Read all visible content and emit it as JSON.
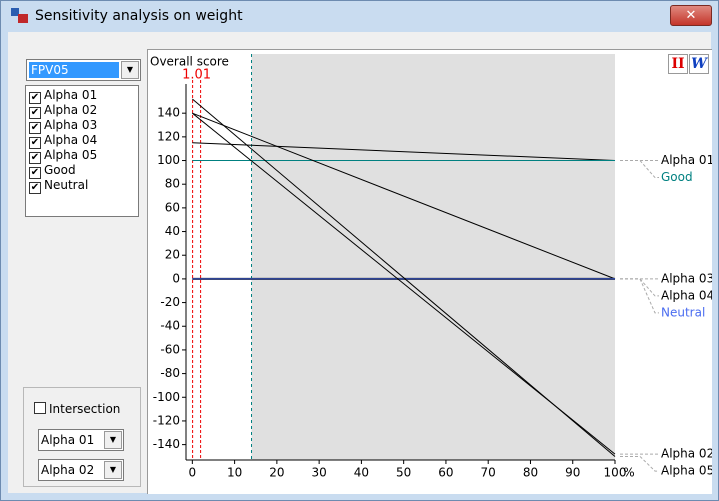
{
  "window": {
    "title": "Sensitivity analysis on weight"
  },
  "selector": {
    "value": "FPV05"
  },
  "items": [
    {
      "label": "Alpha 01",
      "checked": true
    },
    {
      "label": "Alpha 02",
      "checked": true
    },
    {
      "label": "Alpha 03",
      "checked": true
    },
    {
      "label": "Alpha 04",
      "checked": true
    },
    {
      "label": "Alpha 05",
      "checked": true
    },
    {
      "label": "Good",
      "checked": true
    },
    {
      "label": "Neutral",
      "checked": true
    }
  ],
  "intersection": {
    "label": "Intersection",
    "checked": false,
    "first": "Alpha 01",
    "second": "Alpha 02"
  },
  "toolbar": {
    "left": "II",
    "right": "W"
  },
  "chart_data": {
    "type": "line",
    "y_label": "Overall score",
    "x_label": "%",
    "marker": 1.01,
    "reference_x": 14,
    "x": [
      0,
      100
    ],
    "xlim": [
      -1.5,
      100
    ],
    "ylim": [
      -153,
      190
    ],
    "xticks": [
      0,
      10,
      20,
      30,
      40,
      50,
      60,
      70,
      80,
      90,
      100
    ],
    "yticks": [
      -140,
      -120,
      -100,
      -80,
      -60,
      -40,
      -20,
      0,
      20,
      40,
      60,
      80,
      100,
      120,
      140
    ],
    "series": [
      {
        "name": "Alpha 01",
        "color": "#000000",
        "width": 1,
        "values": [
          115,
          100
        ]
      },
      {
        "name": "Good",
        "color": "#008080",
        "width": 1,
        "values": [
          100,
          100
        ]
      },
      {
        "name": "Alpha 03",
        "color": "#000000",
        "width": 1,
        "values": [
          140,
          0
        ]
      },
      {
        "name": "Alpha 04",
        "color": "#000000",
        "width": 2,
        "values": [
          0,
          0
        ]
      },
      {
        "name": "Neutral",
        "color": "#4a6cf0",
        "width": 1,
        "values": [
          0,
          0
        ]
      },
      {
        "name": "Alpha 02",
        "color": "#000000",
        "width": 1,
        "values": [
          140,
          -148
        ]
      },
      {
        "name": "Alpha 05",
        "color": "#000000",
        "width": 1,
        "values": [
          152,
          -150
        ]
      }
    ]
  }
}
